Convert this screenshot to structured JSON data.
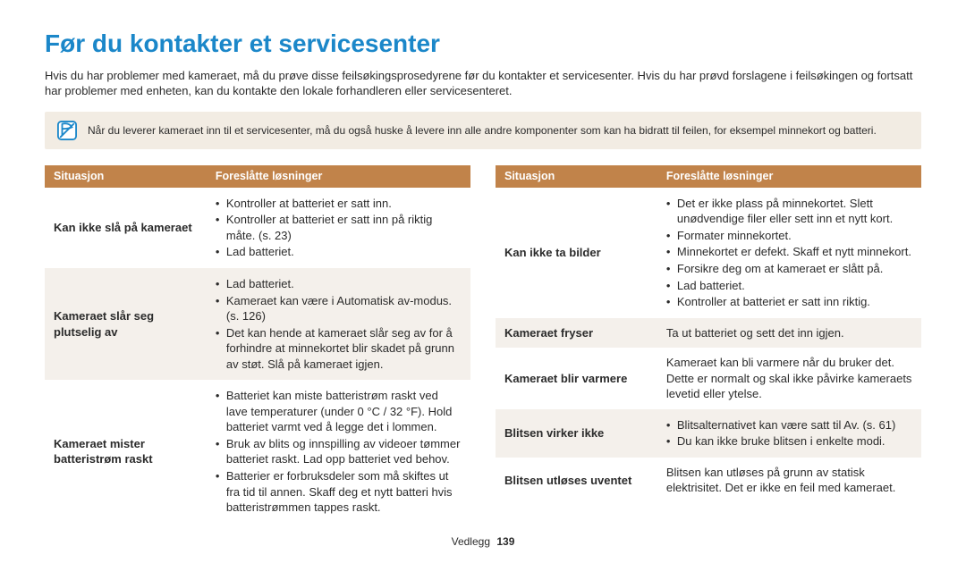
{
  "title": "Før du kontakter et servicesenter",
  "intro": "Hvis du har problemer med kameraet, må du prøve disse feilsøkingsprosedyrene før du kontakter et servicesenter. Hvis du har prøvd forslagene i feilsøkingen og fortsatt har problemer med enheten, kan du kontakte den lokale forhandleren eller servicesenteret.",
  "note": "Når du leverer kameraet inn til et servicesenter, må du også huske å levere inn alle andre komponenter som kan ha bidratt til feilen, for eksempel minnekort og batteri.",
  "headers": {
    "situation": "Situasjon",
    "solutions": "Foreslåtte løsninger"
  },
  "left": [
    {
      "situation": "Kan ikke slå på kameraet",
      "bullets": [
        "Kontroller at batteriet er satt inn.",
        "Kontroller at batteriet er satt inn på riktig måte. (s. 23)",
        "Lad batteriet."
      ]
    },
    {
      "situation": "Kameraet slår seg plutselig av",
      "bullets": [
        "Lad batteriet.",
        "Kameraet kan være i Automatisk av-modus. (s. 126)",
        "Det kan hende at kameraet slår seg av for å forhindre at minnekortet blir skadet på grunn av støt. Slå på kameraet igjen."
      ]
    },
    {
      "situation": "Kameraet mister batteristrøm raskt",
      "bullets": [
        "Batteriet kan miste batteristrøm raskt ved lave temperaturer (under 0 °C / 32 °F). Hold batteriet varmt ved å legge det i lommen.",
        "Bruk av blits og innspilling av videoer tømmer batteriet raskt. Lad opp batteriet ved behov.",
        "Batterier er forbruksdeler som må skiftes ut fra tid til annen. Skaff deg et nytt batteri hvis batteristrømmen tappes raskt."
      ]
    }
  ],
  "right": [
    {
      "situation": "Kan ikke ta bilder",
      "bullets": [
        "Det er ikke plass på minnekortet. Slett unødvendige filer eller sett inn et nytt kort.",
        "Formater minnekortet.",
        "Minnekortet er defekt. Skaff et nytt minnekort.",
        "Forsikre deg om at kameraet er slått på.",
        "Lad batteriet.",
        "Kontroller at batteriet er satt inn riktig."
      ]
    },
    {
      "situation": "Kameraet fryser",
      "plain": "Ta ut batteriet og sett det inn igjen."
    },
    {
      "situation": "Kameraet blir varmere",
      "plain": "Kameraet kan bli varmere når du bruker det. Dette er normalt og skal ikke påvirke kameraets levetid eller ytelse."
    },
    {
      "situation": "Blitsen virker ikke",
      "bullets": [
        "Blitsalternativet kan være satt til Av. (s. 61)",
        "Du kan ikke bruke blitsen i enkelte modi."
      ]
    },
    {
      "situation": "Blitsen utløses uventet",
      "plain": "Blitsen kan utløses på grunn av statisk elektrisitet. Det er ikke en feil med kameraet."
    }
  ],
  "footer": {
    "section": "Vedlegg",
    "page": "139"
  },
  "colors": {
    "title": "#1b87c9",
    "header_bg": "#c1834a",
    "note_bg": "#f2ece3",
    "row_alt": "#f4f0eb"
  }
}
